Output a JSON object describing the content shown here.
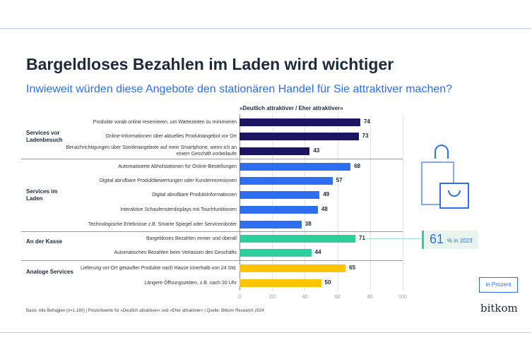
{
  "title": "Bargeldloses Bezahlen im Laden wird wichtiger",
  "subtitle": "Inwieweit würden diese Angebote den stationären Handel für Sie attraktiver machen?",
  "chart_data": {
    "type": "bar",
    "orientation": "horizontal",
    "column_header": "»Deutlich attraktiver / Eher attraktiver«",
    "xlim": [
      0,
      100
    ],
    "ticks": [
      "0",
      "20",
      "40",
      "60",
      "80",
      "100"
    ],
    "grid": true,
    "groups": [
      {
        "name": "Services vor Ladenbesuch",
        "color": "#1e1464",
        "items": [
          {
            "label": "Produkte vorab online reservieren, um Wartezeiten zu minimieren",
            "value": 74
          },
          {
            "label": "Online-Informationen über aktuelles Produktangebot vor Ort",
            "value": 73
          },
          {
            "label": "Benachrichtigungen über Sonderangebote auf mein Smartphone, wenn ich an einem Geschäft vorbeilaufe",
            "value": 43
          }
        ]
      },
      {
        "name": "Services im Laden",
        "color": "#2d6ff0",
        "items": [
          {
            "label": "Automatisierte Abholstationen für Online-Bestellungen",
            "value": 68
          },
          {
            "label": "Digital abrufbare Produktbewertungen oder Kundenrezesionen",
            "value": 57
          },
          {
            "label": "Digital abrufbare Produktinformationen",
            "value": 49
          },
          {
            "label": "Interaktive Schaufensterdisplays mit Touchfunktionen",
            "value": 48
          },
          {
            "label": "Technologische Erlebnisse z.B. Smarte Spiegel oder Serviceroboter",
            "value": 38
          }
        ]
      },
      {
        "name": "An der Kasse",
        "color": "#2ecf9a",
        "items": [
          {
            "label": "Bargeldoses Bezahlen immer und überall",
            "value": 71
          },
          {
            "label": "Automatisches Bezahlen beim Verlassen des Geschäfts",
            "value": 44
          }
        ]
      },
      {
        "name": "Analoge Services",
        "color": "#ffc400",
        "items": [
          {
            "label": "Lieferung vor Ort gekaufter Produkte nach Hause innerhalb von 24 Std.",
            "value": 65
          },
          {
            "label": "Längere Öffnungszeiten, z.B. nach 20 Uhr",
            "value": 50
          }
        ]
      }
    ],
    "annotation": {
      "value": "61",
      "text": "% in 2023"
    }
  },
  "unit_label": "in Prozent",
  "footnote": "Basis: Alle Befragten (n=1.180) | Prozentwerte für »Deutlich attraktiver« und »Eher attraktiver« | Quelle: Bitkom Research 2024",
  "logo": "bitkom"
}
